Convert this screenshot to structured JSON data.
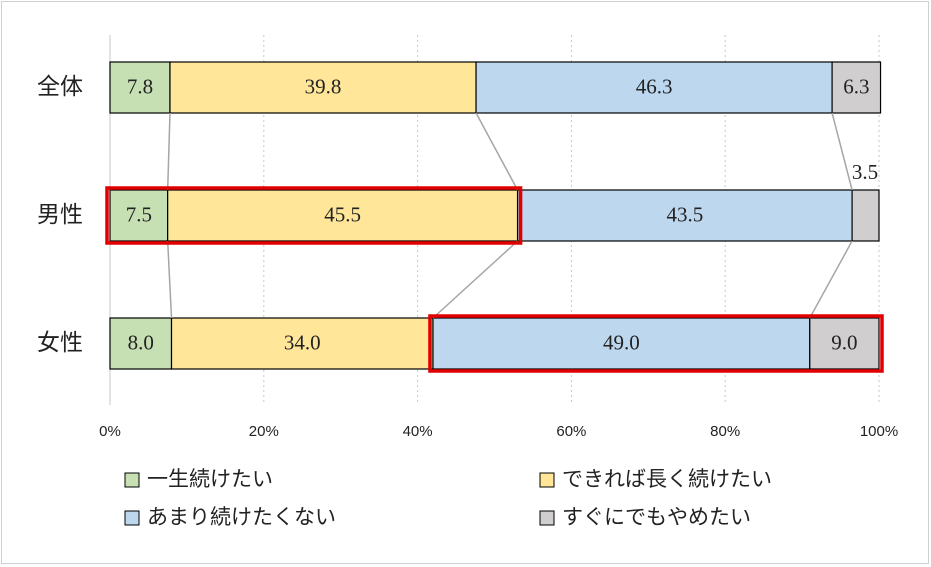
{
  "chart_data": {
    "type": "stacked-bar-horizontal",
    "categories": [
      "全体",
      "男性",
      "女性"
    ],
    "series": [
      {
        "name": "一生続けたい",
        "color": "#c6e0b4",
        "values": [
          7.8,
          7.5,
          8.0
        ],
        "value_labels": [
          "7.8",
          "7.5",
          "8.0"
        ]
      },
      {
        "name": "できれば長く続けたい",
        "color": "#ffe699",
        "values": [
          39.8,
          45.5,
          34.0
        ],
        "value_labels": [
          "39.8",
          "45.5",
          "34.0"
        ]
      },
      {
        "name": "あまり続けたくない",
        "color": "#bdd7ee",
        "values": [
          46.3,
          43.5,
          49.0
        ],
        "value_labels": [
          "46.3",
          "43.5",
          "49.0"
        ]
      },
      {
        "name": "すぐにでもやめたい",
        "color": "#d0cece",
        "values": [
          6.3,
          3.5,
          9.0
        ],
        "value_labels": [
          "6.3",
          "3.5",
          "9.0"
        ]
      }
    ],
    "xlim": [
      0,
      100
    ],
    "xticks": [
      {
        "value": 0,
        "label": "0%"
      },
      {
        "value": 20,
        "label": "20%"
      },
      {
        "value": 40,
        "label": "40%"
      },
      {
        "value": 60,
        "label": "60%"
      },
      {
        "value": 80,
        "label": "80%"
      },
      {
        "value": 100,
        "label": "100%"
      }
    ],
    "grid": true
  }
}
